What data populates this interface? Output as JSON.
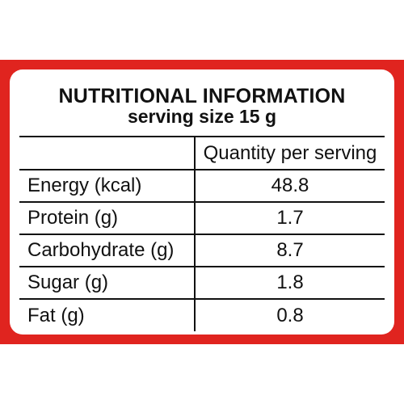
{
  "label": {
    "title": "NUTRITIONAL INFORMATION",
    "subtitle": "serving size 15 g",
    "column_header": "Quantity per serving",
    "rows": [
      {
        "name": "Energy (kcal)",
        "value": "48.8"
      },
      {
        "name": "Protein (g)",
        "value": "1.7"
      },
      {
        "name": "Carbohydrate (g)",
        "value": "8.7"
      },
      {
        "name": "Sugar (g)",
        "value": "1.8"
      },
      {
        "name": "Fat (g)",
        "value": "0.8"
      }
    ]
  },
  "colors": {
    "frame": "#e0241f",
    "background": "#ffffff",
    "text": "#111111"
  }
}
